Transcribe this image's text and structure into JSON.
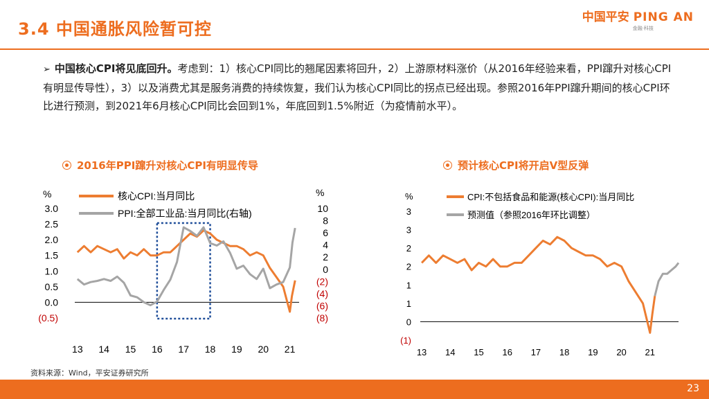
{
  "header": {
    "title": "3.4 中国通胀风险暂可控",
    "logo_cn": "中国平安",
    "logo_en": "PING AN",
    "logo_tag": "金融·科技"
  },
  "bullet": {
    "marker": "➢",
    "bold": "中国核心CPI将见底回升。",
    "text": "考虑到：1）核心CPI同比的翘尾因素将回升，2）上游原材料涨价（从2016年经验来看，PPI蹿升对核心CPI有明显传导性），3）以及消费尤其是服务消费的持续恢复，我们认为核心CPI同比的拐点已经出现。参照2016年PPI蹿升期间的核心CPI环比进行预测，到2021年6月核心CPI同比会回到1%，年底回到1.5%附近（为疫情前水平）。"
  },
  "charts": {
    "left_title": "2016年PPI蹿升对核心CPI有明显传导",
    "right_title": "预计核心CPI将开启V型反弹"
  },
  "colors": {
    "orange": "#ED7D31",
    "gray": "#A5A5A5",
    "neg": "#C00000",
    "box": "#1F4E99",
    "accent": "#ED6D1F"
  },
  "chart_data": [
    {
      "type": "line",
      "ylabel_left": "%",
      "ylabel_right": "%",
      "x_ticks": [
        "13",
        "14",
        "15",
        "16",
        "17",
        "18",
        "19",
        "20",
        "21"
      ],
      "y_left_ticks": [
        "3.0",
        "2.5",
        "2.0",
        "1.5",
        "1.0",
        "0.5",
        "0.0",
        "(0.5)"
      ],
      "y_right_ticks": [
        "10",
        "8",
        "6",
        "4",
        "2",
        "0",
        "(2)",
        "(4)",
        "(6)",
        "(8)"
      ],
      "ylim_left": [
        -0.5,
        3.0
      ],
      "ylim_right": [
        -8,
        10
      ],
      "highlight_box_x": [
        2016.0,
        2018.0
      ],
      "series": [
        {
          "name": "核心CPI:当月同比",
          "axis": "left",
          "x": [
            2013.0,
            2013.25,
            2013.5,
            2013.75,
            2014.0,
            2014.25,
            2014.5,
            2014.75,
            2015.0,
            2015.25,
            2015.5,
            2015.75,
            2016.0,
            2016.25,
            2016.5,
            2016.75,
            2017.0,
            2017.25,
            2017.5,
            2017.75,
            2018.0,
            2018.25,
            2018.5,
            2018.75,
            2019.0,
            2019.25,
            2019.5,
            2019.75,
            2020.0,
            2020.25,
            2020.5,
            2020.75,
            2021.0,
            2021.08,
            2021.2
          ],
          "y": [
            1.6,
            1.8,
            1.6,
            1.8,
            1.7,
            1.6,
            1.7,
            1.4,
            1.6,
            1.5,
            1.7,
            1.5,
            1.5,
            1.6,
            1.6,
            1.8,
            2.0,
            2.2,
            2.1,
            2.3,
            2.2,
            2.0,
            1.9,
            1.8,
            1.8,
            1.7,
            1.5,
            1.6,
            1.5,
            1.1,
            0.8,
            0.5,
            -0.3,
            0.2,
            0.7
          ]
        },
        {
          "name": "PPI:全部工业品:当月同比(右轴)",
          "axis": "right",
          "x": [
            2013.0,
            2013.25,
            2013.5,
            2013.75,
            2014.0,
            2014.25,
            2014.5,
            2014.75,
            2015.0,
            2015.25,
            2015.5,
            2015.75,
            2016.0,
            2016.25,
            2016.5,
            2016.75,
            2017.0,
            2017.25,
            2017.5,
            2017.75,
            2018.0,
            2018.25,
            2018.5,
            2018.75,
            2019.0,
            2019.25,
            2019.5,
            2019.75,
            2020.0,
            2020.25,
            2020.5,
            2020.75,
            2021.0,
            2021.1,
            2021.2
          ],
          "y": [
            -1.6,
            -2.5,
            -2.1,
            -1.9,
            -1.6,
            -1.9,
            -1.2,
            -2.2,
            -4.3,
            -4.6,
            -5.4,
            -5.9,
            -5.3,
            -3.4,
            -1.7,
            1.2,
            6.9,
            6.3,
            5.5,
            6.9,
            4.3,
            3.9,
            4.6,
            2.7,
            0.1,
            0.6,
            -0.8,
            -1.6,
            0.1,
            -3.1,
            -2.5,
            -2.1,
            0.3,
            4.4,
            6.8
          ]
        }
      ]
    },
    {
      "type": "line",
      "ylabel": "%",
      "x_ticks": [
        "13",
        "14",
        "15",
        "16",
        "17",
        "18",
        "19",
        "20",
        "21"
      ],
      "y_ticks": [
        "3",
        "3",
        "2",
        "2",
        "1",
        "1",
        "0",
        "(1)"
      ],
      "ylim": [
        -0.5,
        3.0
      ],
      "series": [
        {
          "name": "CPI:不包括食品和能源(核心CPI):当月同比",
          "x": [
            2013.0,
            2013.25,
            2013.5,
            2013.75,
            2014.0,
            2014.25,
            2014.5,
            2014.75,
            2015.0,
            2015.25,
            2015.5,
            2015.75,
            2016.0,
            2016.25,
            2016.5,
            2016.75,
            2017.0,
            2017.25,
            2017.5,
            2017.75,
            2018.0,
            2018.25,
            2018.5,
            2018.75,
            2019.0,
            2019.25,
            2019.5,
            2019.75,
            2020.0,
            2020.25,
            2020.5,
            2020.75,
            2021.0,
            2021.08,
            2021.17
          ],
          "y": [
            1.6,
            1.8,
            1.6,
            1.8,
            1.7,
            1.6,
            1.7,
            1.4,
            1.6,
            1.5,
            1.7,
            1.5,
            1.5,
            1.6,
            1.6,
            1.8,
            2.0,
            2.2,
            2.1,
            2.3,
            2.2,
            2.0,
            1.9,
            1.8,
            1.8,
            1.7,
            1.5,
            1.6,
            1.5,
            1.1,
            0.8,
            0.5,
            -0.3,
            0.2,
            0.7
          ]
        },
        {
          "name": "预测值（参照2016年环比调整）",
          "x": [
            2021.17,
            2021.3,
            2021.45,
            2021.6,
            2021.75,
            2021.9,
            2022.0
          ],
          "y": [
            0.7,
            1.1,
            1.3,
            1.3,
            1.4,
            1.5,
            1.6
          ]
        }
      ]
    }
  ],
  "footer": {
    "source": "资料来源：Wind，平安证券研究所",
    "page": "23"
  }
}
